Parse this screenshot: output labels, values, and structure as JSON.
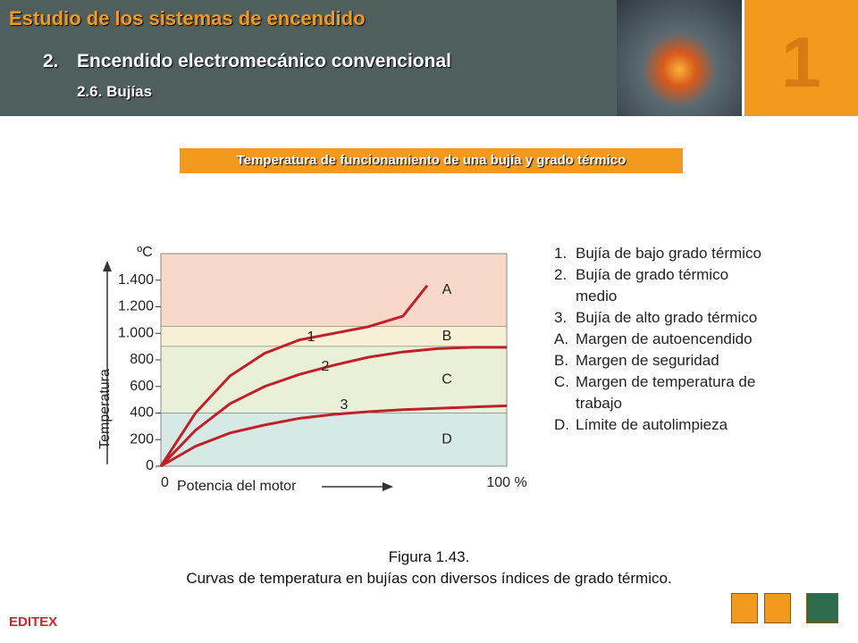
{
  "header": {
    "title": "Estudio de los sistemas de encendido",
    "section_number": "2.",
    "section": "Encendido electromecánico convencional",
    "subsection": "2.6. Bujías",
    "chapter": "1"
  },
  "banner": "Temperatura de funcionamiento de una bujía y grado térmico",
  "chart_data": {
    "type": "line",
    "x_label": "Potencia del motor",
    "y_label": "Temperatura",
    "y_unit": "ºC",
    "xlim": [
      0,
      100
    ],
    "xticks": [
      0,
      {
        "value": 100,
        "label": "100 %"
      }
    ],
    "ylim": [
      0,
      1600
    ],
    "yticks": [
      0,
      200,
      400,
      600,
      800,
      {
        "value": 1000,
        "label": "1.000"
      },
      {
        "value": 1200,
        "label": "1.200"
      },
      {
        "value": 1400,
        "label": "1.400"
      }
    ],
    "zones": [
      {
        "label": "A",
        "from": 1050,
        "to": 1600,
        "color": "#f8d9c9"
      },
      {
        "label": "B",
        "from": 900,
        "to": 1050,
        "color": "#f6f1d6"
      },
      {
        "label": "C",
        "from": 400,
        "to": 900,
        "color": "#e9f0d8"
      },
      {
        "label": "D",
        "from": 0,
        "to": 400,
        "color": "#d6e9e4"
      }
    ],
    "series": [
      {
        "name": "1",
        "color": "#c0202a",
        "x": [
          0,
          10,
          20,
          30,
          40,
          50,
          60,
          70,
          77
        ],
        "values": [
          0,
          400,
          680,
          850,
          950,
          1000,
          1050,
          1130,
          1360
        ]
      },
      {
        "name": "2",
        "color": "#c0202a",
        "x": [
          0,
          10,
          20,
          30,
          40,
          50,
          60,
          70,
          80,
          90,
          100
        ],
        "values": [
          0,
          270,
          470,
          600,
          690,
          760,
          820,
          860,
          885,
          895,
          895
        ]
      },
      {
        "name": "3",
        "color": "#c0202a",
        "x": [
          0,
          10,
          20,
          30,
          40,
          50,
          60,
          70,
          80,
          90,
          100
        ],
        "values": [
          0,
          150,
          250,
          310,
          360,
          390,
          410,
          425,
          435,
          445,
          455
        ]
      }
    ]
  },
  "legend": [
    {
      "key": "1.",
      "text": "Bujía de bajo grado térmico"
    },
    {
      "key": "2.",
      "text": "Bujía de grado térmico medio"
    },
    {
      "key": "3.",
      "text": "Bujía de alto grado térmico"
    },
    {
      "key": "A.",
      "text": "Margen de autoencendido"
    },
    {
      "key": "B.",
      "text": "Margen de seguridad"
    },
    {
      "key": "C.",
      "text": "Margen de temperatura de trabajo"
    },
    {
      "key": "D.",
      "text": "Límite de autolimpieza"
    }
  ],
  "caption": {
    "title": "Figura 1.43.",
    "text": "Curvas de temperatura en bujías con diversos índices de grado térmico."
  },
  "logo": "EDITEX"
}
